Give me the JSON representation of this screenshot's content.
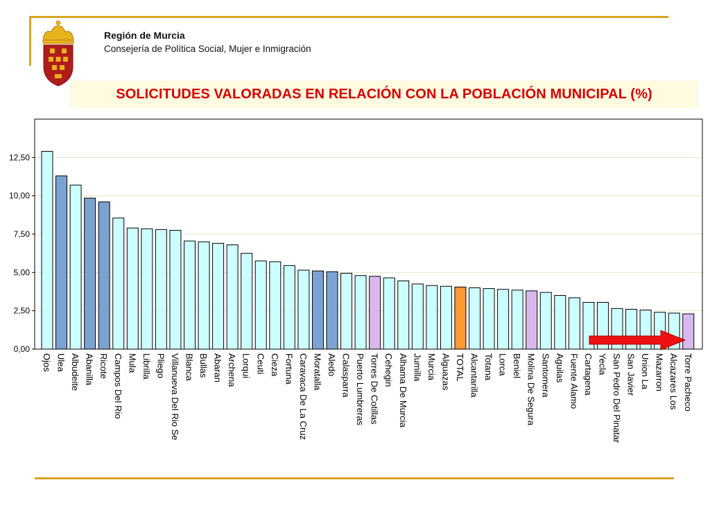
{
  "header": {
    "org_name": "Región de Murcia",
    "department": "Consejería de Política Social, Mujer e Inmigración"
  },
  "colors": {
    "accent_line": "#d9a521",
    "title_text": "#d40000",
    "title_background": "#fffbe0",
    "bar_default": "#ccffff",
    "bar_blue": "#7ba3d1",
    "bar_lavender": "#d9b8ee",
    "bar_total": "#ff9933",
    "arrow": "#ee1111"
  },
  "icons": {
    "crest": "coat-of-arms-icon",
    "arrow": "right-arrow-icon"
  },
  "chart_data": {
    "type": "bar",
    "title": "SOLICITUDES VALORADAS EN RELACIÓN CON LA POBLACIÓN MUNICIPAL (%)",
    "xlabel": "",
    "ylabel": "",
    "ylim": [
      0,
      15
    ],
    "yticks": [
      "0,00",
      "2,50",
      "5,00",
      "7,50",
      "10,00",
      "12,50"
    ],
    "grid": true,
    "categories": [
      "Ojos",
      "Ulea",
      "Albudeite",
      "Abanilla",
      "Ricote",
      "Campos Del Rio",
      "Mula",
      "Librilla",
      "Pliego",
      "Villanueva Del Rio Se",
      "Blanca",
      "Bullas",
      "Abaran",
      "Archena",
      "Lorqui",
      "Ceuti",
      "Cieza",
      "Fortuna",
      "Caravaca De La Cruz",
      "Moratalla",
      "Aledo",
      "Calasparra",
      "Puerto Lumbreras",
      "Torres De Cotillas",
      "Cehegin",
      "Alhama De Murcia",
      "Jumilla",
      "Murcia",
      "Alguazas",
      "TOTAL",
      "Alcantarilla",
      "Totana",
      "Lorca",
      "Beniel",
      "Molina De Segura",
      "Santomera",
      "Aguilas",
      "Fuente Alamo",
      "Cartagena",
      "Yecla",
      "San Pedro Del Pinatar",
      "San Javier",
      "Union La",
      "Mazarron",
      "Alcazares Los",
      "Torre Pacheco"
    ],
    "values": [
      12.9,
      11.3,
      10.7,
      9.85,
      9.6,
      8.55,
      7.9,
      7.85,
      7.8,
      7.75,
      7.05,
      7.0,
      6.9,
      6.8,
      6.25,
      5.75,
      5.7,
      5.45,
      5.15,
      5.1,
      5.05,
      4.95,
      4.8,
      4.75,
      4.65,
      4.45,
      4.25,
      4.15,
      4.1,
      4.05,
      4.0,
      3.95,
      3.9,
      3.85,
      3.8,
      3.7,
      3.5,
      3.35,
      3.05,
      3.05,
      2.65,
      2.6,
      2.55,
      2.4,
      2.35,
      2.3
    ],
    "bar_colors": [
      "#ccffff",
      "#7ba3d1",
      "#ccffff",
      "#7ba3d1",
      "#7ba3d1",
      "#ccffff",
      "#ccffff",
      "#ccffff",
      "#ccffff",
      "#ccffff",
      "#ccffff",
      "#ccffff",
      "#ccffff",
      "#ccffff",
      "#ccffff",
      "#ccffff",
      "#ccffff",
      "#ccffff",
      "#ccffff",
      "#7ba3d1",
      "#7ba3d1",
      "#ccffff",
      "#ccffff",
      "#d9b8ee",
      "#ccffff",
      "#ccffff",
      "#ccffff",
      "#ccffff",
      "#ccffff",
      "#ff9933",
      "#ccffff",
      "#ccffff",
      "#ccffff",
      "#ccffff",
      "#d9b8ee",
      "#ccffff",
      "#ccffff",
      "#ccffff",
      "#ccffff",
      "#ccffff",
      "#ccffff",
      "#ccffff",
      "#ccffff",
      "#ccffff",
      "#ccffff",
      "#d9b8ee"
    ]
  }
}
